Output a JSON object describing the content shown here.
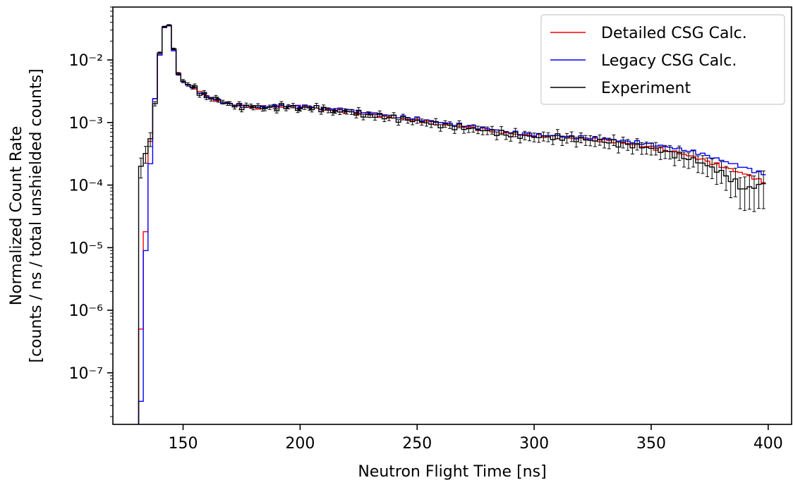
{
  "chart_data": {
    "type": "line",
    "title": "",
    "xlabel": "Neutron Flight Time [ns]",
    "ylabel_lines": [
      "Normalized Count Rate",
      "[counts / ns / total unshielded counts]"
    ],
    "xlim": [
      120,
      410
    ],
    "ylim": [
      1.5e-08,
      0.07
    ],
    "yscale": "log",
    "xticks": [
      150,
      200,
      250,
      300,
      350,
      400
    ],
    "yticks": [
      {
        "value": 1e-07,
        "label": "10⁻⁷"
      },
      {
        "value": 1e-06,
        "label": "10⁻⁶"
      },
      {
        "value": 1e-05,
        "label": "10⁻⁵"
      },
      {
        "value": 0.0001,
        "label": "10⁻⁴"
      },
      {
        "value": 0.001,
        "label": "10⁻³"
      },
      {
        "value": 0.01,
        "label": "10⁻²"
      }
    ],
    "grid": false,
    "legend_position": "top-right",
    "bin_width_ns": 2,
    "series": [
      {
        "name": "Detailed CSG Calc.",
        "color": "#ff0000",
        "style": "step",
        "x": [
          132,
          134,
          136,
          138,
          140,
          142,
          144,
          146,
          148,
          150,
          155,
          160,
          165,
          170,
          175,
          180,
          185,
          190,
          195,
          200,
          205,
          210,
          215,
          220,
          225,
          230,
          240,
          250,
          260,
          270,
          280,
          290,
          300,
          310,
          320,
          330,
          340,
          350,
          360,
          370,
          380,
          390,
          398
        ],
        "y": [
          5e-07,
          1.8e-05,
          0.0005,
          0.0024,
          0.012,
          0.033,
          0.035,
          0.015,
          0.0062,
          0.0046,
          0.0035,
          0.0026,
          0.0022,
          0.002,
          0.0018,
          0.00175,
          0.00175,
          0.00178,
          0.0018,
          0.00178,
          0.00172,
          0.00165,
          0.00158,
          0.0015,
          0.00142,
          0.00135,
          0.0012,
          0.00108,
          0.00095,
          0.00085,
          0.00076,
          0.00066,
          0.00061,
          0.00058,
          0.00055,
          0.00052,
          0.00046,
          0.0004,
          0.00034,
          0.00027,
          0.0002,
          0.00015,
          0.000112
        ]
      },
      {
        "name": "Legacy CSG Calc.",
        "color": "#0000ff",
        "style": "step",
        "x": [
          132,
          134,
          136,
          138,
          140,
          142,
          144,
          146,
          148,
          150,
          155,
          160,
          165,
          170,
          175,
          180,
          185,
          190,
          195,
          200,
          205,
          210,
          215,
          220,
          225,
          230,
          240,
          250,
          260,
          270,
          280,
          290,
          300,
          310,
          320,
          330,
          340,
          350,
          360,
          370,
          380,
          390,
          398
        ],
        "y": [
          3.5e-08,
          9e-06,
          0.00022,
          0.0024,
          0.012,
          0.033,
          0.035,
          0.014,
          0.0058,
          0.0045,
          0.0035,
          0.0026,
          0.0022,
          0.002,
          0.00185,
          0.0018,
          0.0018,
          0.00182,
          0.00185,
          0.00185,
          0.0018,
          0.00172,
          0.00165,
          0.00158,
          0.0015,
          0.00142,
          0.00128,
          0.00115,
          0.001,
          0.0009,
          0.0008,
          0.0007,
          0.00064,
          0.00061,
          0.00058,
          0.00055,
          0.0005,
          0.00045,
          0.00039,
          0.00033,
          0.00025,
          0.00019,
          0.00015
        ]
      },
      {
        "name": "Experiment",
        "color": "#000000",
        "style": "step",
        "error_bars": true,
        "x": [
          132,
          134,
          136,
          138,
          140,
          142,
          144,
          146,
          148,
          150,
          155,
          160,
          165,
          170,
          175,
          180,
          185,
          190,
          195,
          200,
          205,
          210,
          215,
          220,
          225,
          230,
          240,
          250,
          260,
          270,
          280,
          290,
          300,
          310,
          320,
          330,
          340,
          350,
          360,
          370,
          380,
          390,
          398
        ],
        "y": [
          0.0002,
          0.00032,
          0.00055,
          0.002,
          0.013,
          0.034,
          0.036,
          0.015,
          0.006,
          0.0046,
          0.0035,
          0.0026,
          0.0022,
          0.002,
          0.0018,
          0.00175,
          0.00178,
          0.00175,
          0.00178,
          0.00175,
          0.0017,
          0.00162,
          0.00155,
          0.00145,
          0.00138,
          0.00132,
          0.00118,
          0.00105,
          0.00092,
          0.00082,
          0.00074,
          0.00063,
          0.00059,
          0.00058,
          0.00054,
          0.0005,
          0.00044,
          0.00039,
          0.00031,
          0.00024,
          0.00016,
          8.5e-05,
          0.000105
        ],
        "yerr_rel": [
          0.35,
          0.3,
          0.25,
          0.08,
          0.03,
          0.02,
          0.02,
          0.03,
          0.05,
          0.06,
          0.07,
          0.07,
          0.07,
          0.07,
          0.08,
          0.08,
          0.08,
          0.08,
          0.08,
          0.08,
          0.08,
          0.09,
          0.09,
          0.09,
          0.1,
          0.1,
          0.1,
          0.11,
          0.12,
          0.13,
          0.14,
          0.15,
          0.16,
          0.17,
          0.18,
          0.19,
          0.2,
          0.22,
          0.25,
          0.3,
          0.38,
          0.55,
          0.6
        ]
      }
    ]
  }
}
